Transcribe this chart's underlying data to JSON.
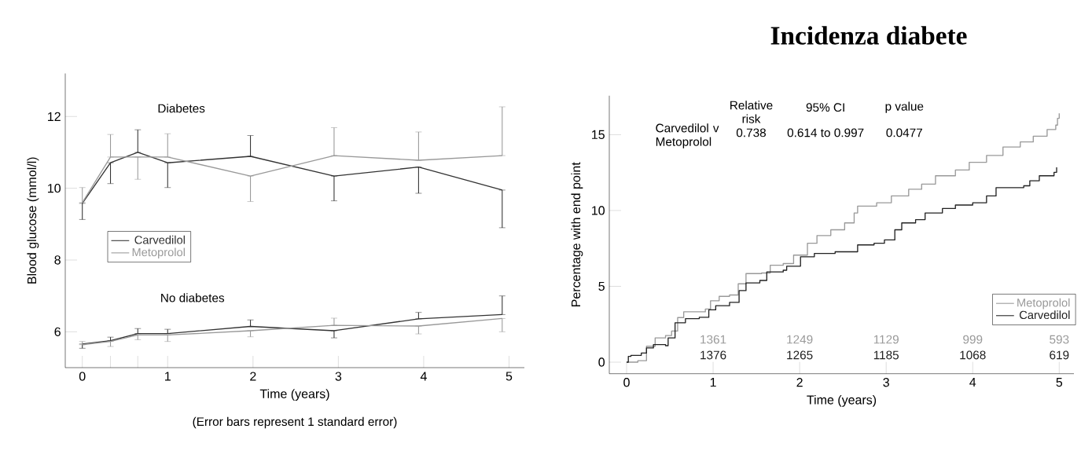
{
  "chart_data": [
    {
      "type": "line",
      "xlabel": "Time (years)",
      "ylabel": "Blood glucose (mmol/l)",
      "annotations": [
        "Diabetes",
        "No diabetes",
        "(Error bars represent 1 standard error)"
      ],
      "x": [
        0,
        0.33,
        0.65,
        1,
        1.97,
        2.95,
        3.94,
        4.92
      ],
      "xlim": [
        -0.2,
        5.18
      ],
      "ylim": [
        5,
        13.2
      ],
      "xticks": [
        0,
        {
          "value": 0.33,
          "label": null
        },
        {
          "value": 0.65,
          "label": null
        },
        1,
        2,
        3,
        4,
        5
      ],
      "yticks": [
        6,
        8,
        10,
        12
      ],
      "legend": "left",
      "series": [
        {
          "name": "Carvedilol",
          "color": "#333333",
          "values": [
            9.58,
            10.71,
            11.0,
            10.71,
            10.89,
            10.34,
            10.59,
            9.95
          ],
          "errors": [
            [
              9.13,
              9.58
            ],
            [
              10.13,
              10.71
            ],
            [
              11.0,
              11.63
            ],
            [
              10.02,
              10.71
            ],
            [
              10.89,
              11.47
            ],
            [
              9.65,
              10.34
            ],
            [
              9.86,
              10.59
            ],
            [
              8.9,
              9.95
            ]
          ]
        },
        {
          "name": "Metoprolol",
          "color": "#999999",
          "values": [
            9.6,
            10.87,
            10.87,
            10.87,
            10.34,
            10.91,
            10.78,
            10.91
          ],
          "errors": [
            [
              9.6,
              10.02
            ],
            [
              10.87,
              11.5
            ],
            [
              10.25,
              10.87
            ],
            [
              10.87,
              11.52
            ],
            [
              9.63,
              10.34
            ],
            [
              10.91,
              11.69
            ],
            [
              10.78,
              11.57
            ],
            [
              10.91,
              12.27
            ]
          ]
        },
        {
          "color": "#333333",
          "values": [
            5.66,
            5.75,
            5.95,
            5.95,
            6.15,
            6.03,
            6.36,
            6.48
          ],
          "errors": [
            [
              5.54,
              5.66
            ],
            [
              5.75,
              5.85
            ],
            [
              5.95,
              6.09
            ],
            [
              5.95,
              6.07
            ],
            [
              6.15,
              6.33
            ],
            [
              5.83,
              6.03
            ],
            [
              6.36,
              6.54
            ],
            [
              6.48,
              7.0
            ]
          ]
        },
        {
          "color": "#999999",
          "values": [
            5.64,
            5.73,
            5.91,
            5.91,
            6.03,
            6.18,
            6.16,
            6.37
          ],
          "errors": [
            [
              5.64,
              5.73
            ],
            [
              5.59,
              5.73
            ],
            [
              5.78,
              5.91
            ],
            [
              5.73,
              5.91
            ],
            [
              5.86,
              6.03
            ],
            [
              6.18,
              6.38
            ],
            [
              5.94,
              6.16
            ],
            [
              6.0,
              6.37
            ]
          ]
        }
      ]
    },
    {
      "type": "step",
      "title": "Incidenza diabete",
      "xlabel": "Time (years)",
      "ylabel": "Percentage with end point",
      "annotations": [
        "Relative risk",
        "95% CI",
        "p value",
        "Carvedilol v Metoprolol",
        "0.738",
        "0.614 to 0.997",
        "0.0477",
        "1361",
        "1249",
        "1129",
        "999",
        "593",
        "1376",
        "1265",
        "1185",
        "1068",
        "619"
      ],
      "xlim": [
        -0.2,
        5.17
      ],
      "ylim": [
        -0.76,
        17.57
      ],
      "xticks": [
        0,
        1,
        2,
        3,
        4,
        5
      ],
      "yticks": [
        0,
        5,
        10,
        15
      ],
      "legend": "bottom right",
      "series": [
        {
          "name": "Metoprolol",
          "color": "#999999",
          "x": [
            0,
            0.05,
            0.13,
            0.23,
            0.33,
            0.45,
            0.52,
            0.59,
            0.66,
            0.91,
            0.97,
            1.07,
            1.19,
            1.29,
            1.38,
            1.56,
            1.66,
            1.81,
            1.93,
            2.09,
            2.2,
            2.36,
            2.52,
            2.63,
            2.67,
            2.89,
            3.06,
            3.26,
            3.41,
            3.57,
            3.8,
            3.96,
            4.16,
            4.35,
            4.55,
            4.7,
            4.86,
            4.96,
            4.98,
            5.0
          ],
          "values": [
            0,
            0,
            0.1,
            1.05,
            1.6,
            1.76,
            2.05,
            2.94,
            3.32,
            3.5,
            4.05,
            4.34,
            4.43,
            5.17,
            5.84,
            5.88,
            6.39,
            6.5,
            7.06,
            7.84,
            8.35,
            8.73,
            9.18,
            9.84,
            10.29,
            10.51,
            10.96,
            11.4,
            11.74,
            12.29,
            12.67,
            13.18,
            13.63,
            14.19,
            14.52,
            14.9,
            15.34,
            15.63,
            16.08,
            16.41
          ]
        },
        {
          "name": "Carvedilol",
          "color": "#222222",
          "x": [
            0,
            0.02,
            0.05,
            0.17,
            0.23,
            0.31,
            0.45,
            0.48,
            0.56,
            0.68,
            0.84,
            0.95,
            1.03,
            1.19,
            1.3,
            1.38,
            1.54,
            1.62,
            1.81,
            1.85,
            2.01,
            2.17,
            2.41,
            2.67,
            2.86,
            2.98,
            3.1,
            3.18,
            3.34,
            3.45,
            3.65,
            3.8,
            4.0,
            4.16,
            4.27,
            4.59,
            4.66,
            4.77,
            4.94,
            4.97
          ],
          "values": [
            0,
            0.38,
            0.45,
            0.6,
            0.94,
            1.16,
            1.09,
            1.6,
            2.6,
            2.87,
            2.96,
            3.45,
            3.72,
            3.94,
            4.72,
            5.23,
            5.39,
            5.95,
            6.06,
            6.33,
            6.95,
            7.17,
            7.28,
            7.73,
            7.84,
            8.06,
            8.73,
            9.18,
            9.4,
            9.84,
            10.13,
            10.36,
            10.51,
            10.96,
            11.51,
            11.63,
            11.96,
            12.29,
            12.52,
            12.85
          ]
        }
      ]
    }
  ]
}
